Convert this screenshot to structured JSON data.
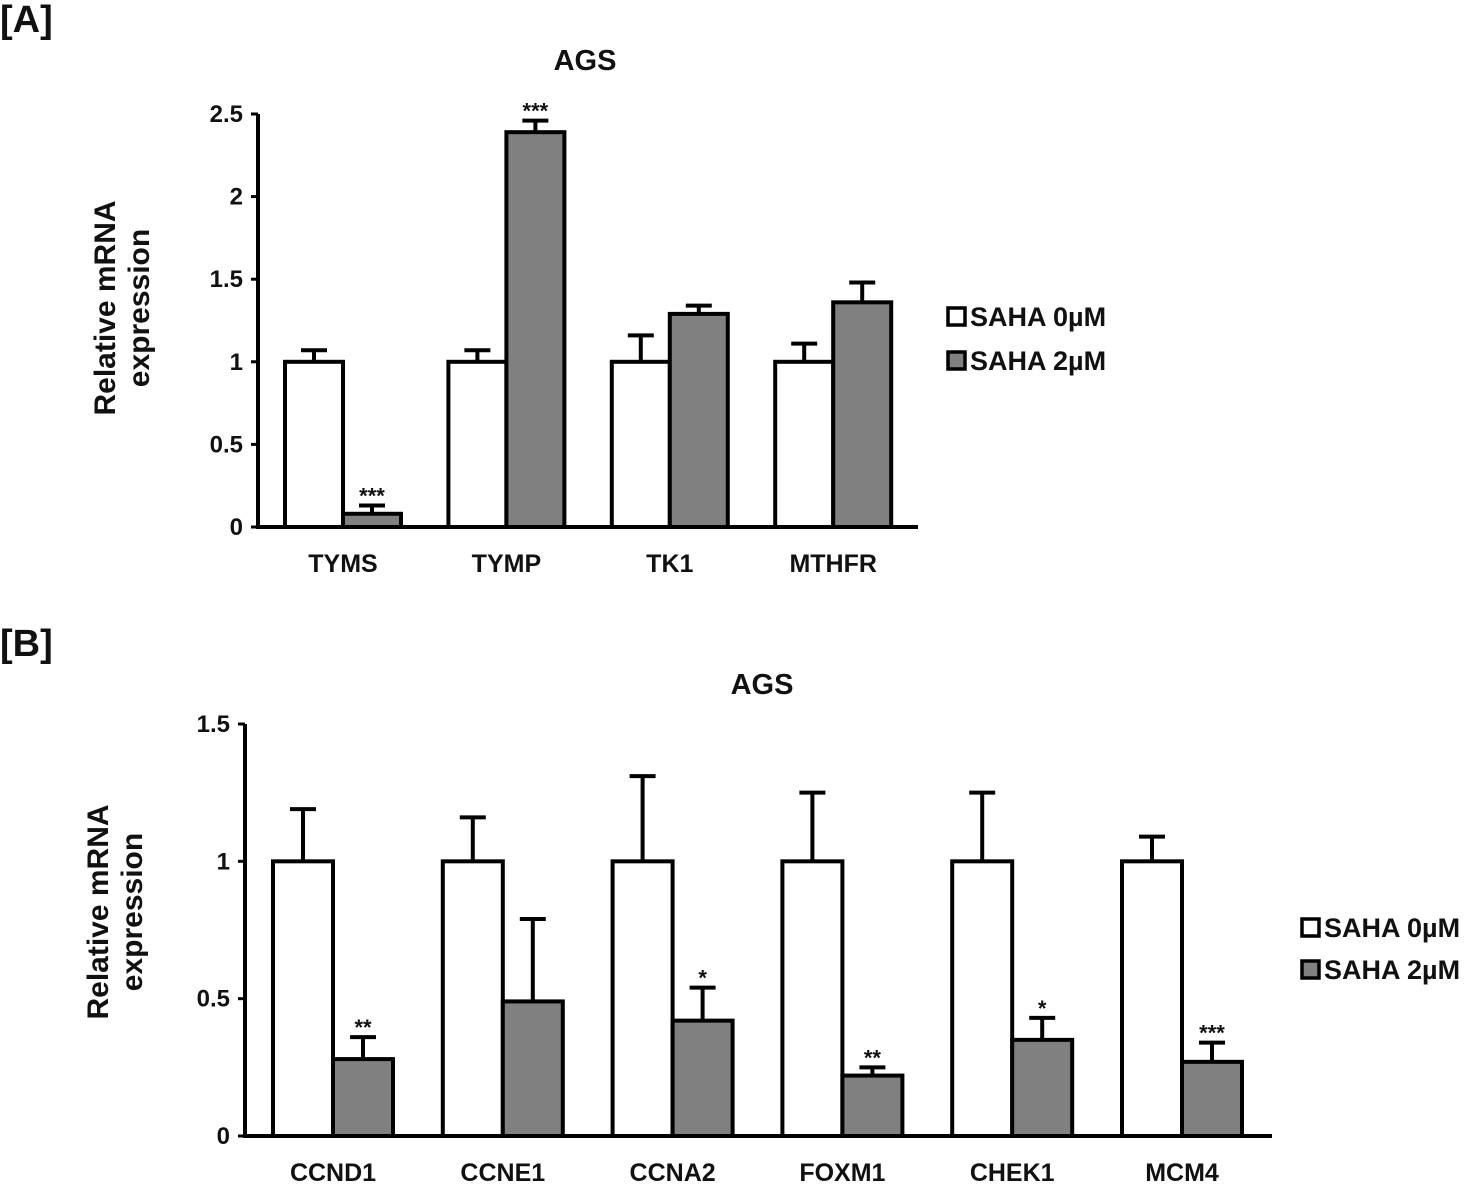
{
  "figure": {
    "panel_a_label": "[A]",
    "panel_b_label": "[B]"
  },
  "colors": {
    "control": "#ffffff",
    "treated": "#808080",
    "stroke": "#000000"
  },
  "chart_data": [
    {
      "type": "bar",
      "panel": "[A]",
      "title": "AGS",
      "xlabel": "",
      "ylabel": "Relative mRNA expression",
      "ylim": [
        0,
        2.5
      ],
      "yticks": [
        0,
        0.5,
        1,
        1.5,
        2,
        2.5
      ],
      "ytick_labels": [
        "0",
        "0.5",
        "1",
        "1.5",
        "2",
        "2.5"
      ],
      "categories": [
        "TYMS",
        "TYMP",
        "TK1",
        "MTHFR"
      ],
      "series": [
        {
          "name": "SAHA 0µM",
          "color": "#ffffff",
          "values": [
            1.0,
            1.0,
            1.0,
            1.0
          ],
          "errors": [
            0.07,
            0.07,
            0.16,
            0.11
          ],
          "significance": [
            "",
            "",
            "",
            ""
          ]
        },
        {
          "name": "SAHA 2µM",
          "color": "#808080",
          "values": [
            0.08,
            2.39,
            1.29,
            1.36
          ],
          "errors": [
            0.05,
            0.07,
            0.05,
            0.12
          ],
          "significance": [
            "***",
            "***",
            "",
            ""
          ]
        }
      ],
      "legend_position": "right",
      "grid": false
    },
    {
      "type": "bar",
      "panel": "[B]",
      "title": "AGS",
      "xlabel": "",
      "ylabel": "Relative mRNA expression",
      "ylim": [
        0,
        1.5
      ],
      "yticks": [
        0,
        0.5,
        1,
        1.5
      ],
      "ytick_labels": [
        "0",
        "0.5",
        "1",
        "1.5"
      ],
      "categories": [
        "CCND1",
        "CCNE1",
        "CCNA2",
        "FOXM1",
        "CHEK1",
        "MCM4"
      ],
      "series": [
        {
          "name": "SAHA 0µM",
          "color": "#ffffff",
          "values": [
            1.0,
            1.0,
            1.0,
            1.0,
            1.0,
            1.0
          ],
          "errors": [
            0.19,
            0.16,
            0.31,
            0.25,
            0.25,
            0.09
          ],
          "significance": [
            "",
            "",
            "",
            "",
            "",
            ""
          ]
        },
        {
          "name": "SAHA 2µM",
          "color": "#808080",
          "values": [
            0.28,
            0.49,
            0.42,
            0.22,
            0.35,
            0.27
          ],
          "errors": [
            0.08,
            0.3,
            0.12,
            0.03,
            0.08,
            0.07
          ],
          "significance": [
            "**",
            "",
            "*",
            "**",
            "*",
            "***"
          ]
        }
      ],
      "legend_position": "right",
      "grid": false
    }
  ]
}
